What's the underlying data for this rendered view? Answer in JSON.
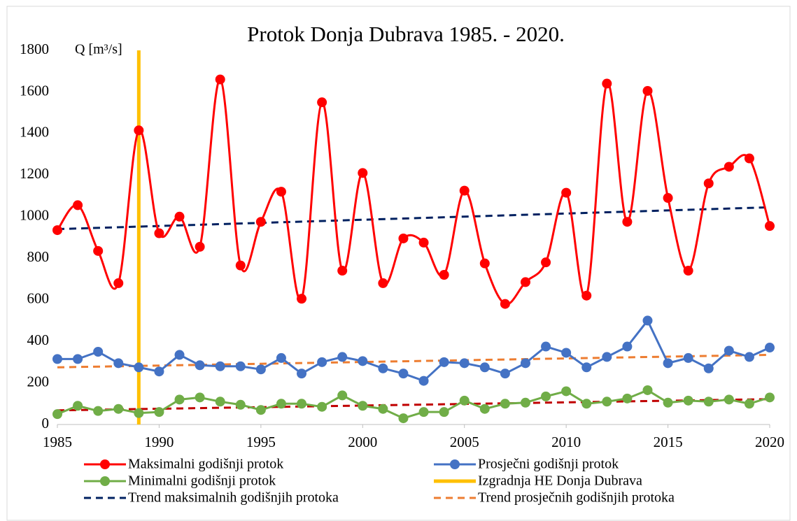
{
  "chart_data": {
    "type": "line",
    "title": "Protok Donja Dubrava 1985. - 2020.",
    "y_label": "Q [m³/s]",
    "x": [
      1985,
      1986,
      1987,
      1988,
      1989,
      1990,
      1991,
      1992,
      1993,
      1994,
      1995,
      1996,
      1997,
      1998,
      1999,
      2000,
      2001,
      2002,
      2003,
      2004,
      2005,
      2006,
      2007,
      2008,
      2009,
      2010,
      2011,
      2012,
      2013,
      2014,
      2015,
      2016,
      2017,
      2018,
      2019,
      2020
    ],
    "series": [
      {
        "name": "Maksimalni godišnji protok",
        "color": "#ff0000",
        "smooth": true,
        "marker": true,
        "values": [
          935,
          1055,
          835,
          680,
          1415,
          920,
          1000,
          855,
          1660,
          765,
          975,
          1120,
          605,
          1550,
          740,
          1210,
          680,
          895,
          875,
          720,
          1125,
          775,
          580,
          685,
          780,
          1115,
          620,
          1640,
          975,
          1605,
          1090,
          740,
          1160,
          1240,
          1280,
          955
        ]
      },
      {
        "name": "Prosječni godišnji protok",
        "color": "#4472c4",
        "marker": true,
        "values": [
          315,
          315,
          350,
          295,
          275,
          255,
          335,
          285,
          280,
          280,
          265,
          320,
          245,
          300,
          325,
          305,
          270,
          245,
          210,
          300,
          295,
          275,
          245,
          295,
          375,
          345,
          275,
          325,
          375,
          500,
          295,
          320,
          270,
          355,
          325,
          370
        ]
      },
      {
        "name": "Minimalni godišnji protok",
        "color": "#70ad47",
        "marker": true,
        "values": [
          50,
          90,
          65,
          75,
          55,
          60,
          120,
          130,
          110,
          95,
          70,
          100,
          100,
          85,
          140,
          90,
          75,
          30,
          60,
          60,
          115,
          75,
          100,
          105,
          135,
          160,
          100,
          110,
          125,
          165,
          105,
          115,
          110,
          120,
          100,
          130
        ]
      },
      {
        "name": "Izgradnja HE Donja Dubrava",
        "color": "#ffc000",
        "width": 5,
        "x": [
          1989,
          1989
        ],
        "values": [
          0,
          1800
        ]
      },
      {
        "name": "Trend maksimalnih godišnjih protoka",
        "color": "#002060",
        "dashed": true,
        "x": [
          1985,
          2020
        ],
        "values": [
          940,
          1045
        ]
      },
      {
        "name": "Trend prosječnih godišnjih protoka",
        "color": "#ed7d31",
        "dashed": true,
        "x": [
          1985,
          2020
        ],
        "values": [
          275,
          335
        ]
      },
      {
        "color": "#c00000",
        "dashed": true,
        "x": [
          1985,
          2020
        ],
        "values": [
          68,
          122
        ]
      }
    ],
    "xlim": [
      1985,
      2020
    ],
    "xticks": [
      1985,
      1990,
      1995,
      2000,
      2005,
      2010,
      2015,
      2020
    ],
    "ylim": [
      0,
      1800
    ],
    "yticks": [
      0,
      200,
      400,
      600,
      800,
      1000,
      1200,
      1400,
      1600,
      1800
    ]
  }
}
